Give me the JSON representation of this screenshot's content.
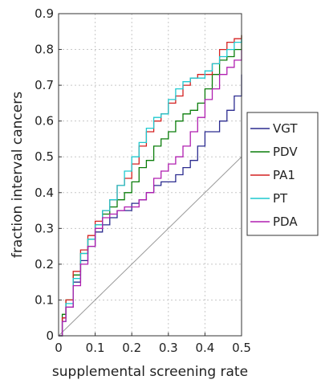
{
  "chart_data": {
    "type": "line",
    "title": "",
    "xlabel": "supplemental screening rate",
    "ylabel": "fraction interval cancers",
    "xlim": [
      0,
      0.5
    ],
    "ylim": [
      0,
      0.9
    ],
    "x_ticks": [
      "0",
      "0.1",
      "0.2",
      "0.3",
      "0.4",
      "0.5"
    ],
    "y_ticks": [
      "0",
      "0.1",
      "0.2",
      "0.3",
      "0.4",
      "0.5",
      "0.6",
      "0.7",
      "0.8",
      "0.9"
    ],
    "grid": true,
    "legend_position": "right",
    "reference_line": {
      "x": [
        0,
        0.5
      ],
      "y": [
        0,
        0.5
      ],
      "color": "#999999"
    },
    "series": [
      {
        "name": "VGT",
        "color": "#2b2b8f",
        "x": [
          0,
          0.01,
          0.02,
          0.04,
          0.06,
          0.08,
          0.1,
          0.12,
          0.14,
          0.16,
          0.18,
          0.2,
          0.22,
          0.24,
          0.26,
          0.28,
          0.3,
          0.32,
          0.34,
          0.36,
          0.38,
          0.4,
          0.42,
          0.44,
          0.46,
          0.48,
          0.5
        ],
        "y": [
          0,
          0.05,
          0.08,
          0.15,
          0.21,
          0.25,
          0.29,
          0.31,
          0.33,
          0.35,
          0.35,
          0.37,
          0.38,
          0.4,
          0.42,
          0.43,
          0.43,
          0.45,
          0.47,
          0.49,
          0.53,
          0.57,
          0.57,
          0.6,
          0.63,
          0.67,
          0.73
        ]
      },
      {
        "name": "PDV",
        "color": "#0a7d0a",
        "x": [
          0,
          0.01,
          0.02,
          0.04,
          0.06,
          0.08,
          0.1,
          0.12,
          0.14,
          0.16,
          0.18,
          0.2,
          0.22,
          0.24,
          0.26,
          0.28,
          0.3,
          0.32,
          0.34,
          0.36,
          0.38,
          0.4,
          0.42,
          0.44,
          0.46,
          0.48,
          0.5
        ],
        "y": [
          0,
          0.06,
          0.1,
          0.17,
          0.23,
          0.27,
          0.31,
          0.34,
          0.36,
          0.38,
          0.4,
          0.43,
          0.47,
          0.49,
          0.53,
          0.55,
          0.57,
          0.6,
          0.62,
          0.63,
          0.65,
          0.69,
          0.73,
          0.77,
          0.78,
          0.8,
          0.84
        ]
      },
      {
        "name": "PA1",
        "color": "#d42020",
        "x": [
          0,
          0.01,
          0.02,
          0.04,
          0.06,
          0.08,
          0.1,
          0.12,
          0.14,
          0.16,
          0.18,
          0.2,
          0.22,
          0.24,
          0.26,
          0.28,
          0.3,
          0.32,
          0.34,
          0.36,
          0.38,
          0.4,
          0.42,
          0.44,
          0.46,
          0.48,
          0.5
        ],
        "y": [
          0,
          0.05,
          0.1,
          0.18,
          0.24,
          0.28,
          0.32,
          0.35,
          0.38,
          0.42,
          0.44,
          0.48,
          0.53,
          0.57,
          0.6,
          0.62,
          0.65,
          0.67,
          0.7,
          0.72,
          0.73,
          0.73,
          0.76,
          0.8,
          0.82,
          0.83,
          0.84
        ]
      },
      {
        "name": "PT",
        "color": "#1ec9cf",
        "x": [
          0,
          0.01,
          0.02,
          0.04,
          0.06,
          0.08,
          0.1,
          0.12,
          0.14,
          0.16,
          0.18,
          0.2,
          0.22,
          0.24,
          0.26,
          0.28,
          0.3,
          0.32,
          0.34,
          0.36,
          0.38,
          0.4,
          0.42,
          0.44,
          0.46,
          0.48,
          0.5
        ],
        "y": [
          0,
          0.04,
          0.09,
          0.16,
          0.23,
          0.27,
          0.31,
          0.35,
          0.38,
          0.42,
          0.46,
          0.5,
          0.54,
          0.58,
          0.61,
          0.62,
          0.66,
          0.69,
          0.71,
          0.72,
          0.72,
          0.74,
          0.76,
          0.78,
          0.8,
          0.82,
          0.83
        ]
      },
      {
        "name": "PDA",
        "color": "#b01fb0",
        "x": [
          0,
          0.01,
          0.02,
          0.04,
          0.06,
          0.08,
          0.1,
          0.12,
          0.14,
          0.16,
          0.18,
          0.2,
          0.22,
          0.24,
          0.26,
          0.28,
          0.3,
          0.32,
          0.34,
          0.36,
          0.38,
          0.4,
          0.42,
          0.44,
          0.46,
          0.48,
          0.5
        ],
        "y": [
          0,
          0.04,
          0.08,
          0.14,
          0.2,
          0.25,
          0.3,
          0.33,
          0.34,
          0.35,
          0.36,
          0.36,
          0.38,
          0.4,
          0.44,
          0.46,
          0.48,
          0.5,
          0.53,
          0.57,
          0.61,
          0.66,
          0.69,
          0.73,
          0.75,
          0.77,
          0.8
        ]
      }
    ]
  }
}
